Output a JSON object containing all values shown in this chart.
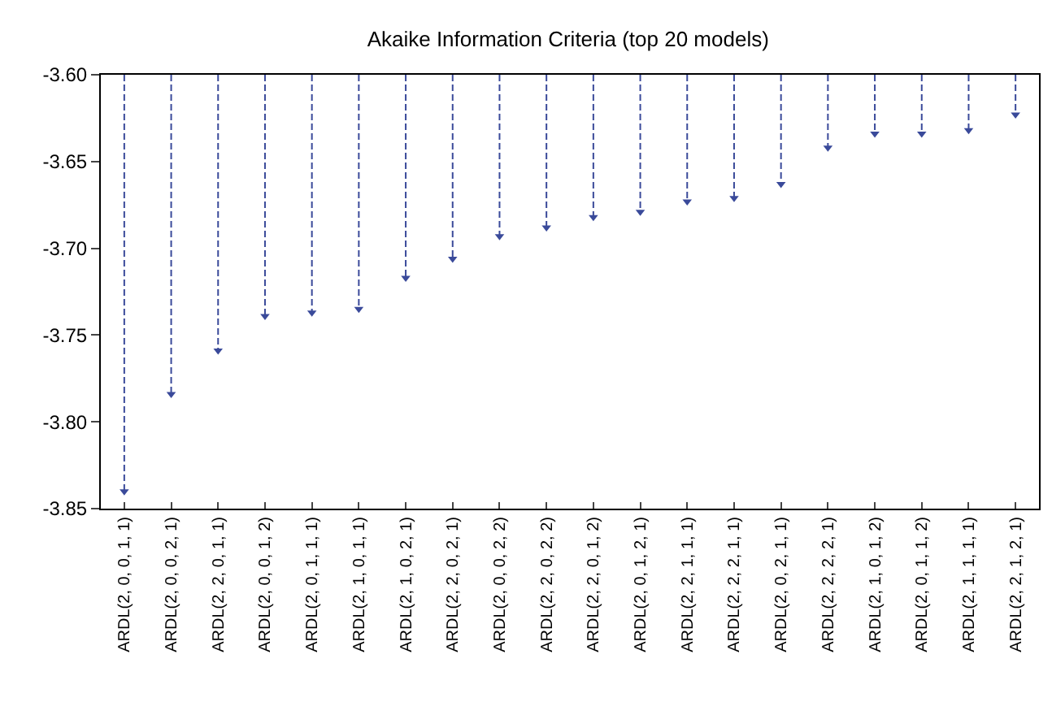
{
  "chart_data": {
    "type": "lollipop",
    "title": "Akaike Information Criteria (top 20 models)",
    "categories": [
      "ARDL(2, 0, 0, 1, 1)",
      "ARDL(2, 0, 0, 2, 1)",
      "ARDL(2, 2, 0, 1, 1)",
      "ARDL(2, 0, 0, 1, 2)",
      "ARDL(2, 0, 1, 1, 1)",
      "ARDL(2, 1, 0, 1, 1)",
      "ARDL(2, 1, 0, 2, 1)",
      "ARDL(2, 2, 0, 2, 1)",
      "ARDL(2, 0, 0, 2, 2)",
      "ARDL(2, 2, 0, 2, 2)",
      "ARDL(2, 2, 0, 1, 2)",
      "ARDL(2, 0, 1, 2, 1)",
      "ARDL(2, 2, 1, 1, 1)",
      "ARDL(2, 2, 2, 1, 1)",
      "ARDL(2, 0, 2, 1, 1)",
      "ARDL(2, 2, 2, 2, 1)",
      "ARDL(2, 1, 0, 1, 2)",
      "ARDL(2, 0, 1, 1, 2)",
      "ARDL(2, 1, 1, 1, 1)",
      "ARDL(2, 2, 1, 2, 1)"
    ],
    "values": [
      -3.84,
      -3.784,
      -3.759,
      -3.739,
      -3.737,
      -3.735,
      -3.717,
      -3.706,
      -3.693,
      -3.688,
      -3.682,
      -3.679,
      -3.673,
      -3.671,
      -3.663,
      -3.642,
      -3.634,
      -3.634,
      -3.632,
      -3.623
    ],
    "color": "#3a4a9a",
    "marker": "triangle",
    "line_style": "dashed",
    "ylim": [
      -3.85,
      -3.6
    ],
    "yticks": [
      {
        "value": -3.85,
        "label": "-3.85"
      },
      {
        "value": -3.8,
        "label": "-3.80"
      },
      {
        "value": -3.75,
        "label": "-3.75"
      },
      {
        "value": -3.7,
        "label": "-3.70"
      },
      {
        "value": -3.65,
        "label": "-3.65"
      },
      {
        "value": -3.6,
        "label": "-3.60"
      }
    ]
  }
}
